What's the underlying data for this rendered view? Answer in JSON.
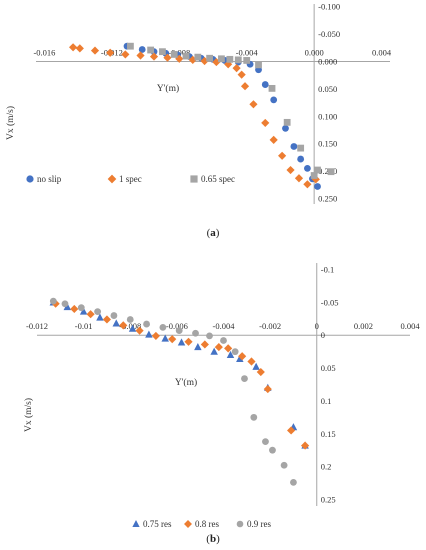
{
  "chart_data": [
    {
      "type": "scatter",
      "panel_label": "a",
      "xlabel": "Y'(m)",
      "ylabel": "Vx (m/s)",
      "xlim": [
        -0.0165,
        0.0045
      ],
      "ylim": [
        0.26,
        -0.105
      ],
      "y_inverted": true,
      "x_ticks": [
        "-0.016",
        "-0.012",
        "-0.008",
        "-0.004",
        "0.000",
        "0.004"
      ],
      "x_tick_values": [
        -0.016,
        -0.012,
        -0.008,
        -0.004,
        0.0,
        0.004
      ],
      "y_ticks": [
        "-0.100",
        "-0.050",
        "0.000",
        "0.050",
        "0.100",
        "0.150",
        "0.200",
        "0.250"
      ],
      "y_tick_values": [
        -0.1,
        -0.05,
        0.0,
        0.05,
        0.1,
        0.15,
        0.2,
        0.25
      ],
      "legend_position": "bottom-left",
      "series": [
        {
          "name": "no slip",
          "color": "#4472C4",
          "marker": "circle",
          "points": [
            [
              -0.0111,
              -0.028
            ],
            [
              -0.0102,
              -0.022
            ],
            [
              -0.0095,
              -0.018
            ],
            [
              -0.0088,
              -0.015
            ],
            [
              -0.0081,
              -0.012
            ],
            [
              -0.0074,
              -0.009
            ],
            [
              -0.0067,
              -0.006
            ],
            [
              -0.006,
              -0.004
            ],
            [
              -0.0053,
              -0.002
            ],
            [
              -0.0045,
              0.001
            ],
            [
              -0.0038,
              0.005
            ],
            [
              -0.0033,
              0.015
            ],
            [
              -0.0029,
              0.042
            ],
            [
              -0.0024,
              0.07
            ],
            [
              -0.0017,
              0.122
            ],
            [
              -0.0012,
              0.155
            ],
            [
              -0.0008,
              0.178
            ],
            [
              -0.0004,
              0.195
            ],
            [
              -0.0001,
              0.214
            ],
            [
              0.0002,
              0.228
            ]
          ]
        },
        {
          "name": "1 spec",
          "color": "#ED7D31",
          "marker": "diamond",
          "points": [
            [
              -0.0143,
              -0.026
            ],
            [
              -0.0139,
              -0.024
            ],
            [
              -0.013,
              -0.02
            ],
            [
              -0.0121,
              -0.016
            ],
            [
              -0.0112,
              -0.013
            ],
            [
              -0.0103,
              -0.011
            ],
            [
              -0.0095,
              -0.009
            ],
            [
              -0.0087,
              -0.007
            ],
            [
              -0.008,
              -0.005
            ],
            [
              -0.0072,
              -0.003
            ],
            [
              -0.0065,
              -0.001
            ],
            [
              -0.0058,
              0.001
            ],
            [
              -0.0051,
              0.005
            ],
            [
              -0.0046,
              0.012
            ],
            [
              -0.0043,
              0.024
            ],
            [
              -0.0041,
              0.045
            ],
            [
              -0.0036,
              0.078
            ],
            [
              -0.0029,
              0.112
            ],
            [
              -0.0024,
              0.143
            ],
            [
              -0.0019,
              0.172
            ],
            [
              -0.0014,
              0.198
            ],
            [
              -0.0009,
              0.213
            ],
            [
              -0.0004,
              0.224
            ],
            [
              0.0001,
              0.215
            ]
          ]
        },
        {
          "name": "0.65 spec",
          "color": "#A5A5A5",
          "marker": "square",
          "points": [
            [
              -0.0109,
              -0.028
            ],
            [
              -0.0097,
              -0.021
            ],
            [
              -0.009,
              -0.018
            ],
            [
              -0.0083,
              -0.013
            ],
            [
              -0.0076,
              -0.01
            ],
            [
              -0.0069,
              -0.008
            ],
            [
              -0.0062,
              -0.006
            ],
            [
              -0.0055,
              -0.005
            ],
            [
              -0.005,
              -0.004
            ],
            [
              -0.0045,
              -0.003
            ],
            [
              -0.004,
              -0.002
            ],
            [
              -0.0033,
              0.006
            ],
            [
              -0.0025,
              0.049
            ],
            [
              -0.0016,
              0.111
            ],
            [
              -0.0008,
              0.158
            ],
            [
              0.0,
              0.208
            ],
            [
              0.0002,
              0.198
            ],
            [
              0.001,
              0.201
            ]
          ]
        }
      ]
    },
    {
      "type": "scatter",
      "panel_label": "b",
      "xlabel": "Y'(m)",
      "ylabel": "Vx (m/s)",
      "xlim": [
        -0.012,
        0.004
      ],
      "ylim": [
        0.26,
        -0.11
      ],
      "y_inverted": true,
      "x_ticks": [
        "-0.012",
        "-0.01",
        "-0.008",
        "-0.006",
        "-0.004",
        "-0.002",
        "0",
        "0.002",
        "0.004"
      ],
      "x_tick_values": [
        -0.012,
        -0.01,
        -0.008,
        -0.006,
        -0.004,
        -0.002,
        0.0,
        0.002,
        0.004
      ],
      "y_ticks": [
        "-0.1",
        "-0.05",
        "0",
        "0.05",
        "0.1",
        "0.15",
        "0.2",
        "0.25"
      ],
      "y_tick_values": [
        -0.1,
        -0.05,
        0.0,
        0.05,
        0.1,
        0.15,
        0.2,
        0.25
      ],
      "legend_position": "bottom-left",
      "series": [
        {
          "name": "0.75 res",
          "color": "#4472C4",
          "marker": "triangle",
          "points": [
            [
              -0.0113,
              -0.05
            ],
            [
              -0.0107,
              -0.043
            ],
            [
              -0.01,
              -0.036
            ],
            [
              -0.0093,
              -0.027
            ],
            [
              -0.0086,
              -0.018
            ],
            [
              -0.0079,
              -0.01
            ],
            [
              -0.0072,
              -0.001
            ],
            [
              -0.0065,
              0.005
            ],
            [
              -0.0058,
              0.011
            ],
            [
              -0.0051,
              0.018
            ],
            [
              -0.0044,
              0.025
            ],
            [
              -0.0037,
              0.03
            ],
            [
              -0.0033,
              0.036
            ],
            [
              -0.0026,
              0.048
            ],
            [
              -0.0021,
              0.08
            ],
            [
              -0.001,
              0.14
            ],
            [
              -0.0005,
              0.168
            ]
          ]
        },
        {
          "name": "0.8 res",
          "color": "#ED7D31",
          "marker": "diamond",
          "points": [
            [
              -0.0112,
              -0.048
            ],
            [
              -0.0104,
              -0.04
            ],
            [
              -0.0097,
              -0.032
            ],
            [
              -0.009,
              -0.024
            ],
            [
              -0.0083,
              -0.015
            ],
            [
              -0.0076,
              -0.007
            ],
            [
              -0.0069,
              0.001
            ],
            [
              -0.0062,
              0.006
            ],
            [
              -0.0055,
              0.01
            ],
            [
              -0.0048,
              0.014
            ],
            [
              -0.0042,
              0.018
            ],
            [
              -0.0038,
              0.02
            ],
            [
              -0.0032,
              0.032
            ],
            [
              -0.0028,
              0.04
            ],
            [
              -0.0024,
              0.056
            ],
            [
              -0.0021,
              0.082
            ],
            [
              -0.0011,
              0.145
            ],
            [
              -0.0005,
              0.168
            ]
          ]
        },
        {
          "name": "0.9 res",
          "color": "#A5A5A5",
          "marker": "circle",
          "points": [
            [
              -0.0113,
              -0.052
            ],
            [
              -0.0108,
              -0.048
            ],
            [
              -0.0101,
              -0.042
            ],
            [
              -0.0094,
              -0.036
            ],
            [
              -0.0087,
              -0.03
            ],
            [
              -0.008,
              -0.024
            ],
            [
              -0.0073,
              -0.017
            ],
            [
              -0.0066,
              -0.012
            ],
            [
              -0.0059,
              -0.007
            ],
            [
              -0.0052,
              -0.003
            ],
            [
              -0.0046,
              0.001
            ],
            [
              -0.004,
              0.008
            ],
            [
              -0.0035,
              0.025
            ],
            [
              -0.0031,
              0.066
            ],
            [
              -0.0027,
              0.125
            ],
            [
              -0.0022,
              0.162
            ],
            [
              -0.0019,
              0.175
            ],
            [
              -0.0014,
              0.198
            ],
            [
              -0.001,
              0.224
            ]
          ]
        }
      ]
    }
  ]
}
